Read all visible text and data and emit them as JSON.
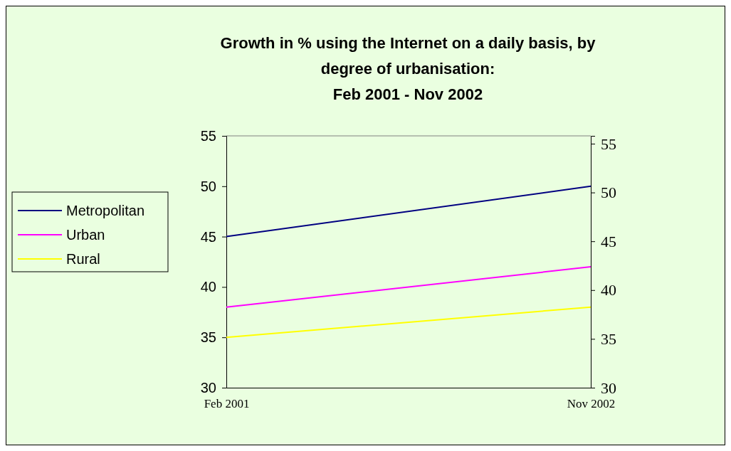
{
  "chart_data": {
    "type": "line",
    "title": "Growth in % using the Internet on a daily basis, by degree of urbanisation: Feb 2001 - Nov 2002",
    "x": [
      "2001-02",
      "2002-11"
    ],
    "series": [
      {
        "name": "Metropolitan",
        "color": "#000080",
        "values": [
          45,
          50
        ]
      },
      {
        "name": "Urban",
        "color": "#ff00ff",
        "values": [
          38,
          42
        ]
      },
      {
        "name": "Rural",
        "color": "#ffff00",
        "values": [
          35,
          38
        ]
      }
    ],
    "xlim": [
      "2001-02",
      "2002-11"
    ],
    "xticks": [
      {
        "value": "2001-02",
        "label": "Feb 2001"
      },
      {
        "value": "2002-11",
        "label": "Nov 2002"
      }
    ],
    "ylim": [
      30,
      55
    ],
    "yticks": [
      30,
      35,
      40,
      45,
      50,
      55
    ],
    "y2lim": [
      30,
      55.8
    ],
    "y2ticks": [
      30,
      35,
      40,
      45,
      50,
      55
    ],
    "grid": false,
    "legend": "left",
    "marker": "none",
    "line_style": "solid"
  }
}
